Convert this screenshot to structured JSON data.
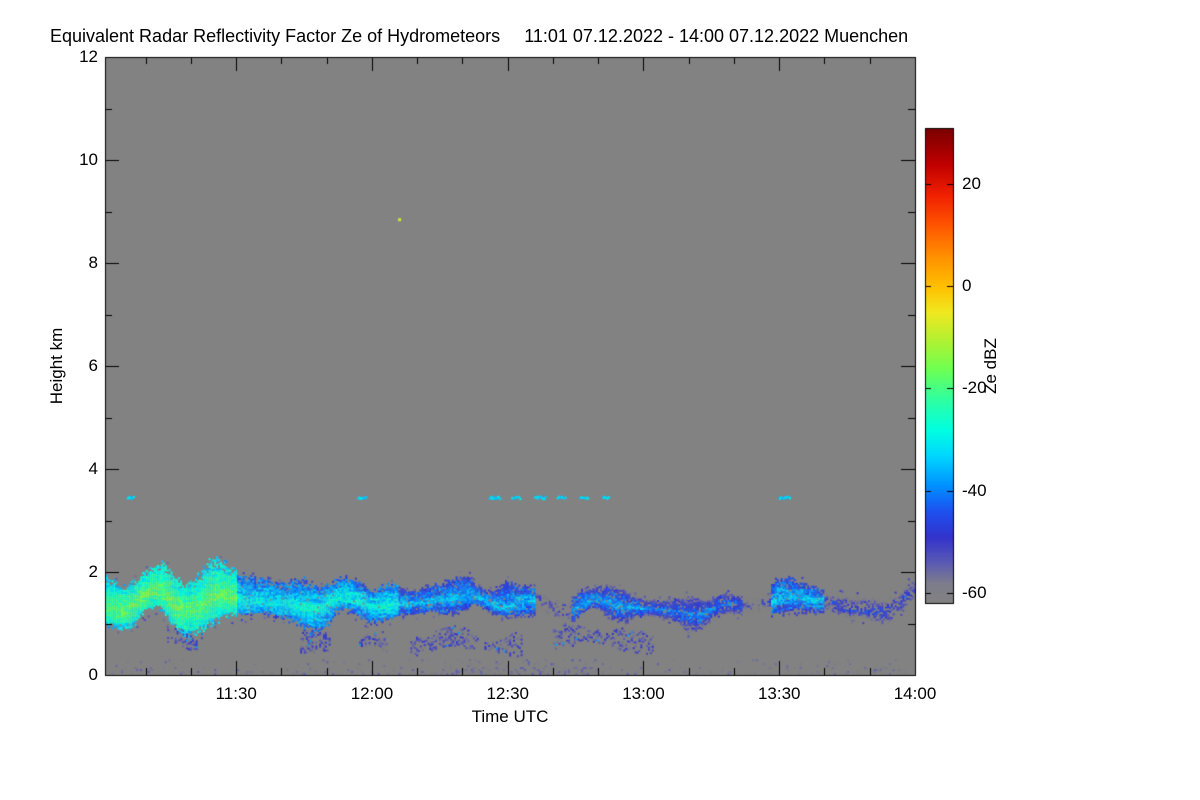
{
  "figure": {
    "title": "Equivalent Radar Reflectivity Factor Ze of Hydrometeors",
    "date_range": "11:01 07.12.2022 - 14:00 07.12.2022 Muenchen"
  },
  "chart_data": {
    "type": "heatmap",
    "title": "Equivalent Radar Reflectivity Factor Ze of Hydrometeors",
    "subtitle": "11:01 07.12.2022 - 14:00 07.12.2022 Muenchen",
    "station": "Muenchen",
    "time_start_utc": "11:01 07.12.2022",
    "time_end_utc": "14:00 07.12.2022",
    "time_unit": "minutes since 00:00 UTC",
    "xlabel": "Time UTC",
    "ylabel": "Height km",
    "x_range_minutes": [
      661,
      840
    ],
    "x_ticks": [
      {
        "t": 690,
        "label": "11:30"
      },
      {
        "t": 720,
        "label": "12:00"
      },
      {
        "t": 750,
        "label": "12:30"
      },
      {
        "t": 780,
        "label": "13:00"
      },
      {
        "t": 810,
        "label": "13:30"
      },
      {
        "t": 840,
        "label": "14:00"
      }
    ],
    "x_minor_tick_step_min": 10,
    "y_range_km": [
      0,
      12
    ],
    "y_ticks": [
      0,
      2,
      4,
      6,
      8,
      10,
      12
    ],
    "y_minor_tick_step_km": 1,
    "grid": false,
    "no_signal_color": "#828282",
    "colorbar": {
      "label": "Ze dBZ",
      "ticks": [
        20,
        0,
        -20,
        -40,
        -60
      ],
      "value_range": [
        -62,
        31
      ],
      "stops": [
        [
          -62,
          "#828282"
        ],
        [
          -58,
          "#7c7c8c"
        ],
        [
          -54,
          "#5a5ab4"
        ],
        [
          -49,
          "#3333cc"
        ],
        [
          -44,
          "#1e50f0"
        ],
        [
          -39,
          "#0090ff"
        ],
        [
          -33,
          "#00d8ff"
        ],
        [
          -28,
          "#00ffe0"
        ],
        [
          -22,
          "#30ffa0"
        ],
        [
          -16,
          "#70ff50"
        ],
        [
          -10,
          "#b8f030"
        ],
        [
          -5,
          "#f0e820"
        ],
        [
          0,
          "#ffc000"
        ],
        [
          6,
          "#ff9000"
        ],
        [
          12,
          "#ff5500"
        ],
        [
          18,
          "#f02000"
        ],
        [
          24,
          "#c00000"
        ],
        [
          31,
          "#7a0000"
        ]
      ]
    },
    "features": {
      "main_cloud_layer": {
        "description": "Shallow stratus layer ~1.0-2.0 km persisting 11:01-14:00; strongest (green/yellow-green, -15 to -25 dBZ) before 11:30, cyan/blue (-25 to -45 dBZ) afterwards, breaking into patches after 12:35 and thinning to sparse blue specks after 13:40",
        "height_center_km": 1.4,
        "segments": [
          {
            "t": [
              661,
              690
            ],
            "peak_dbz": -17,
            "density": 1.0,
            "thick": 1.15
          },
          {
            "t": [
              690,
              726
            ],
            "peak_dbz": -28,
            "density": 0.97,
            "thick": 1.0
          },
          {
            "t": [
              726,
              756
            ],
            "peak_dbz": -34,
            "density": 0.92,
            "thick": 0.85
          },
          {
            "t": [
              756,
              764
            ],
            "peak_dbz": -50,
            "density": 0.3,
            "thick": 0.55
          },
          {
            "t": [
              764,
              780
            ],
            "peak_dbz": -37,
            "density": 0.85,
            "thick": 0.7
          },
          {
            "t": [
              780,
              802
            ],
            "peak_dbz": -40,
            "density": 0.85,
            "thick": 0.65
          },
          {
            "t": [
              802,
              808
            ],
            "peak_dbz": -50,
            "density": 0.4,
            "thick": 0.5
          },
          {
            "t": [
              808,
              820
            ],
            "peak_dbz": -33,
            "density": 0.88,
            "thick": 0.7
          },
          {
            "t": [
              820,
              840
            ],
            "peak_dbz": -46,
            "density": 0.65,
            "thick": 0.5
          }
        ]
      },
      "low_scattered_layer": {
        "description": "Broken weak echoes 0.4-0.95 km, -45 to -60 dBZ",
        "t_range": [
          672,
          802
        ],
        "height_center_km": 0.68,
        "dbz": -53
      },
      "surface_clutter": {
        "description": "Sparse near-surface specks 0-0.3 km, around -57 dBZ",
        "t_range": [
          661,
          840
        ],
        "dbz": -57
      },
      "mid_level_specks": {
        "description": "Isolated thin echoes at ~3.45 km",
        "height_km": 3.45,
        "dbz": -33,
        "dashes": [
          [
            666,
            1.5
          ],
          [
            717,
            2
          ],
          [
            746,
            2.5
          ],
          [
            751,
            2
          ],
          [
            756,
            2.5
          ],
          [
            761,
            2
          ],
          [
            766,
            2
          ],
          [
            771,
            1.5
          ],
          [
            810,
            2.5
          ]
        ]
      },
      "isolated_high_echo": {
        "description": "Single small echo near 8.9 km at ~12:06",
        "time_min": 726,
        "height_km": 8.85,
        "dbz": -8
      }
    }
  }
}
